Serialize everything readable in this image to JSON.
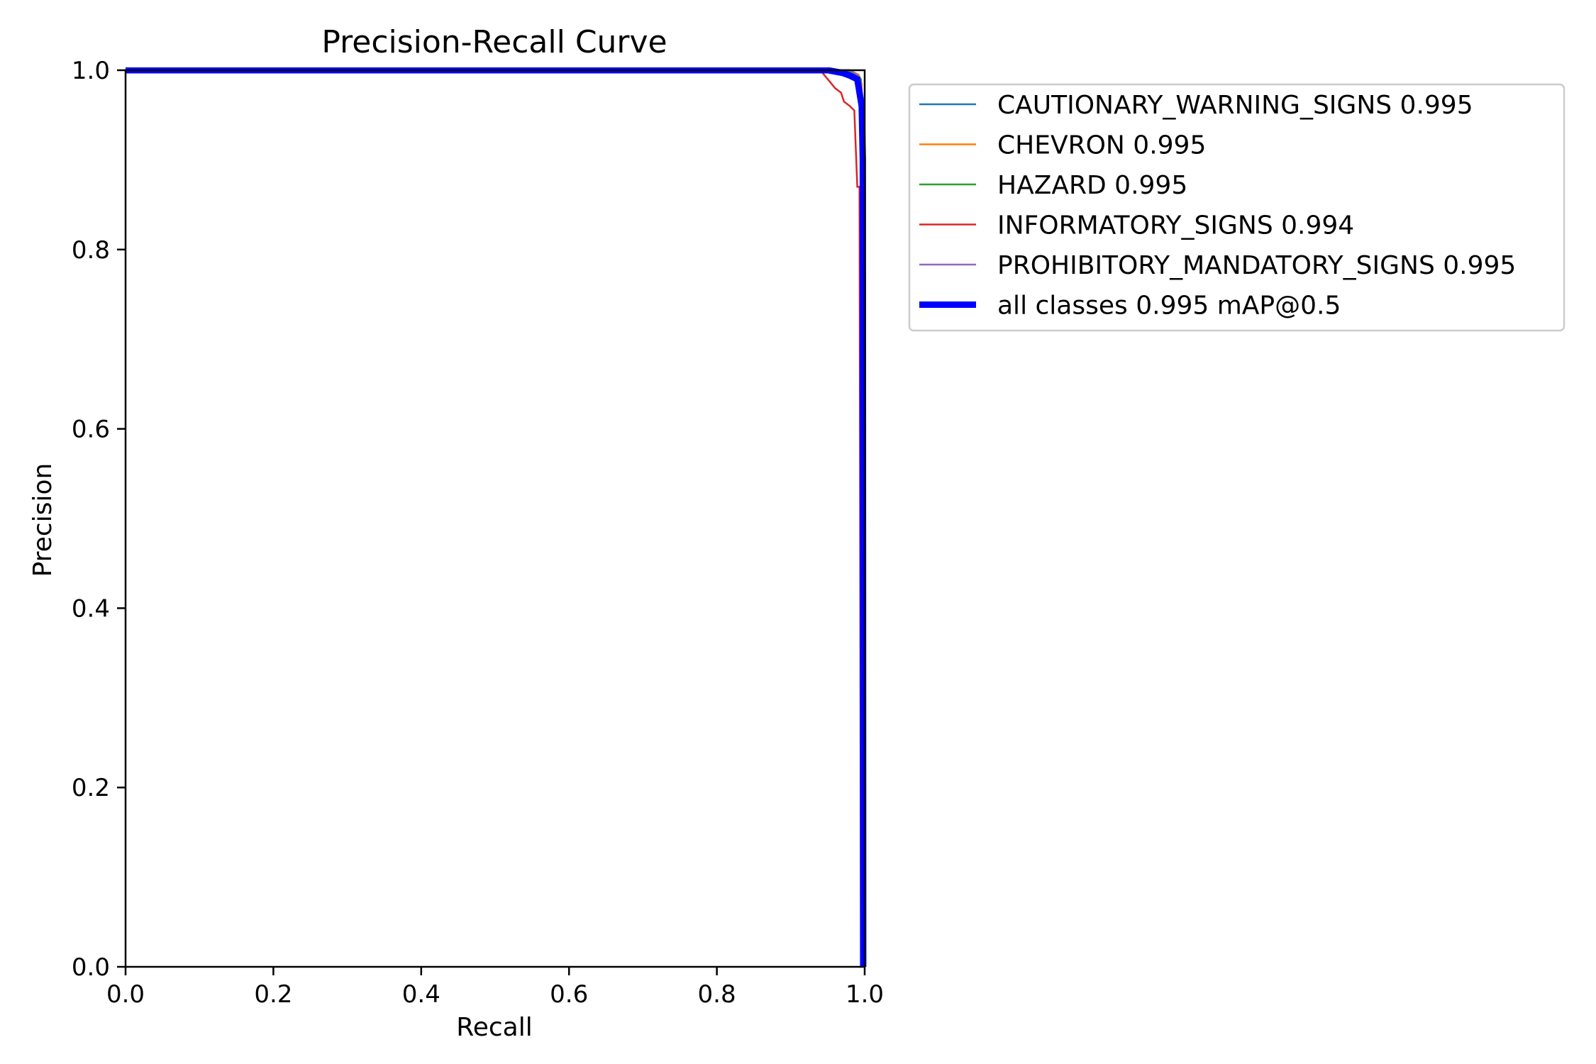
{
  "chart_data": {
    "type": "line",
    "title": "Precision-Recall Curve",
    "xlabel": "Recall",
    "ylabel": "Precision",
    "xlim": [
      0,
      1
    ],
    "ylim": [
      0,
      1
    ],
    "xticks": [
      0.0,
      0.2,
      0.4,
      0.6,
      0.8,
      1.0
    ],
    "yticks": [
      0.0,
      0.2,
      0.4,
      0.6,
      0.8,
      1.0
    ],
    "xtick_labels": [
      "0.0",
      "0.2",
      "0.4",
      "0.6",
      "0.8",
      "1.0"
    ],
    "ytick_labels": [
      "0.0",
      "0.2",
      "0.4",
      "0.6",
      "0.8",
      "1.0"
    ],
    "grid": false,
    "legend_position": "outside-top-right",
    "series": [
      {
        "name": "CAUTIONARY_WARNING_SIGNS 0.995",
        "color": "#1f77b4",
        "width": "thin",
        "points": [
          [
            0.0,
            1.0
          ],
          [
            0.97,
            1.0
          ],
          [
            0.985,
            0.995
          ],
          [
            0.993,
            0.99
          ],
          [
            0.996,
            0.98
          ],
          [
            0.997,
            0.0
          ]
        ]
      },
      {
        "name": "CHEVRON 0.995",
        "color": "#ff7f0e",
        "width": "thin",
        "points": [
          [
            0.0,
            1.0
          ],
          [
            0.98,
            1.0
          ],
          [
            0.992,
            0.995
          ],
          [
            0.996,
            0.985
          ],
          [
            0.998,
            0.0
          ]
        ]
      },
      {
        "name": "HAZARD 0.995",
        "color": "#2ca02c",
        "width": "thin",
        "points": [
          [
            0.0,
            1.0
          ],
          [
            0.975,
            1.0
          ],
          [
            0.99,
            0.995
          ],
          [
            0.995,
            0.99
          ],
          [
            0.997,
            0.0
          ]
        ]
      },
      {
        "name": "INFORMATORY_SIGNS 0.994",
        "color": "#d62728",
        "width": "thin",
        "points": [
          [
            0.0,
            1.0
          ],
          [
            0.94,
            1.0
          ],
          [
            0.945,
            0.995
          ],
          [
            0.95,
            0.99
          ],
          [
            0.955,
            0.985
          ],
          [
            0.96,
            0.98
          ],
          [
            0.968,
            0.975
          ],
          [
            0.972,
            0.965
          ],
          [
            0.98,
            0.96
          ],
          [
            0.986,
            0.955
          ],
          [
            0.99,
            0.87
          ],
          [
            0.993,
            0.87
          ],
          [
            0.995,
            0.0
          ]
        ]
      },
      {
        "name": "PROHIBITORY_MANDATORY_SIGNS 0.995",
        "color": "#9467bd",
        "width": "thin",
        "points": [
          [
            0.0,
            1.0
          ],
          [
            0.98,
            1.0
          ],
          [
            0.99,
            0.995
          ],
          [
            0.995,
            0.985
          ],
          [
            0.997,
            0.0
          ]
        ]
      },
      {
        "name": "all classes 0.995 mAP@0.5",
        "color": "#0000ff",
        "width": "thick",
        "points": [
          [
            0.0,
            1.0
          ],
          [
            0.95,
            1.0
          ],
          [
            0.97,
            0.997
          ],
          [
            0.98,
            0.994
          ],
          [
            0.99,
            0.99
          ],
          [
            0.993,
            0.975
          ],
          [
            0.996,
            0.96
          ],
          [
            0.9975,
            0.9
          ],
          [
            0.998,
            0.0
          ]
        ]
      }
    ]
  }
}
